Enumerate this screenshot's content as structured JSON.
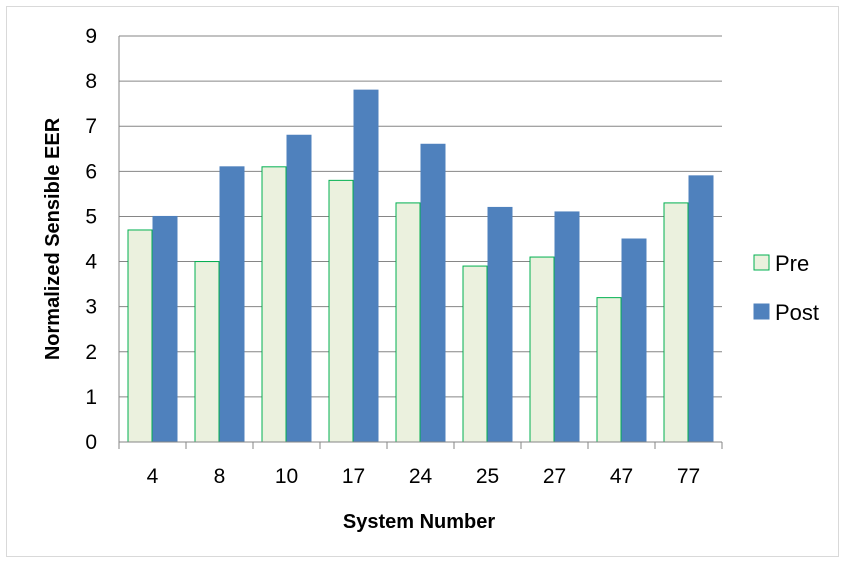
{
  "chart_data": {
    "type": "bar",
    "xlabel": "System Number",
    "ylabel": "Normalized Sensible EER",
    "ylim": [
      0,
      9
    ],
    "yticks": [
      0,
      1,
      2,
      3,
      4,
      5,
      6,
      7,
      8,
      9
    ],
    "grid": "horizontal",
    "legend_position": "right",
    "categories": [
      "4",
      "8",
      "10",
      "17",
      "24",
      "25",
      "27",
      "47",
      "77"
    ],
    "series": [
      {
        "name": "Pre",
        "values": [
          4.7,
          4.0,
          6.1,
          5.8,
          5.3,
          3.9,
          4.1,
          3.2,
          5.3
        ],
        "color": "#ebf1de",
        "stroke": "#00b050"
      },
      {
        "name": "Post",
        "values": [
          5.0,
          6.1,
          6.8,
          7.8,
          6.6,
          5.2,
          5.1,
          4.5,
          5.9
        ],
        "color": "#4f81bd",
        "stroke": "#4f81bd"
      }
    ]
  }
}
